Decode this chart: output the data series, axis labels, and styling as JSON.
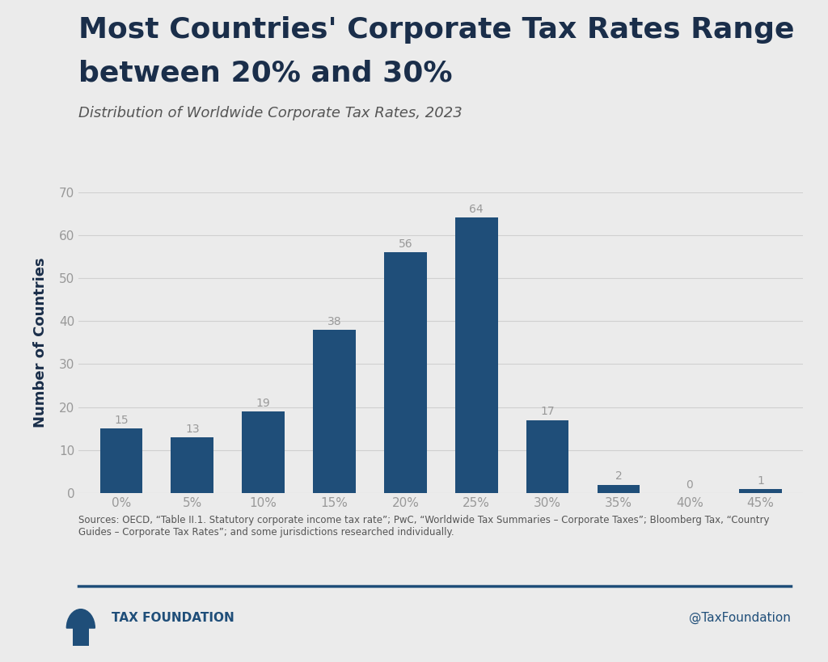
{
  "title_line1": "Most Countries' Corporate Tax Rates Range",
  "title_line2": "between 20% and 30%",
  "subtitle": "Distribution of Worldwide Corporate Tax Rates, 2023",
  "categories": [
    "0%",
    "5%",
    "10%",
    "15%",
    "20%",
    "25%",
    "30%",
    "35%",
    "40%",
    "45%"
  ],
  "values": [
    15,
    13,
    19,
    38,
    56,
    64,
    17,
    2,
    0,
    1
  ],
  "bar_color": "#1f4e79",
  "ylabel": "Number of Countries",
  "ylim": [
    0,
    70
  ],
  "yticks": [
    0,
    10,
    20,
    30,
    40,
    50,
    60,
    70
  ],
  "background_color": "#ebebeb",
  "plot_background_color": "#ebebeb",
  "title_color": "#1a2e4a",
  "subtitle_color": "#555555",
  "ylabel_color": "#1a2e4a",
  "tick_label_color": "#999999",
  "bar_label_color": "#999999",
  "grid_color": "#d0d0d0",
  "source_text": "Sources: OECD, “Table II.1. Statutory corporate income tax rate”; PwC, “Worldwide Tax Summaries – Corporate Taxes”; Bloomberg Tax, “Country\nGuides – Corporate Tax Rates”; and some jurisdictions researched individually.",
  "footer_line_color": "#1f4e79",
  "brand_text": "TAX FOUNDATION",
  "brand_handle": "@TaxFoundation",
  "title_fontsize": 26,
  "subtitle_fontsize": 13,
  "ylabel_fontsize": 13,
  "tick_fontsize": 11,
  "bar_label_fontsize": 10,
  "source_fontsize": 8.5,
  "brand_fontsize": 11
}
